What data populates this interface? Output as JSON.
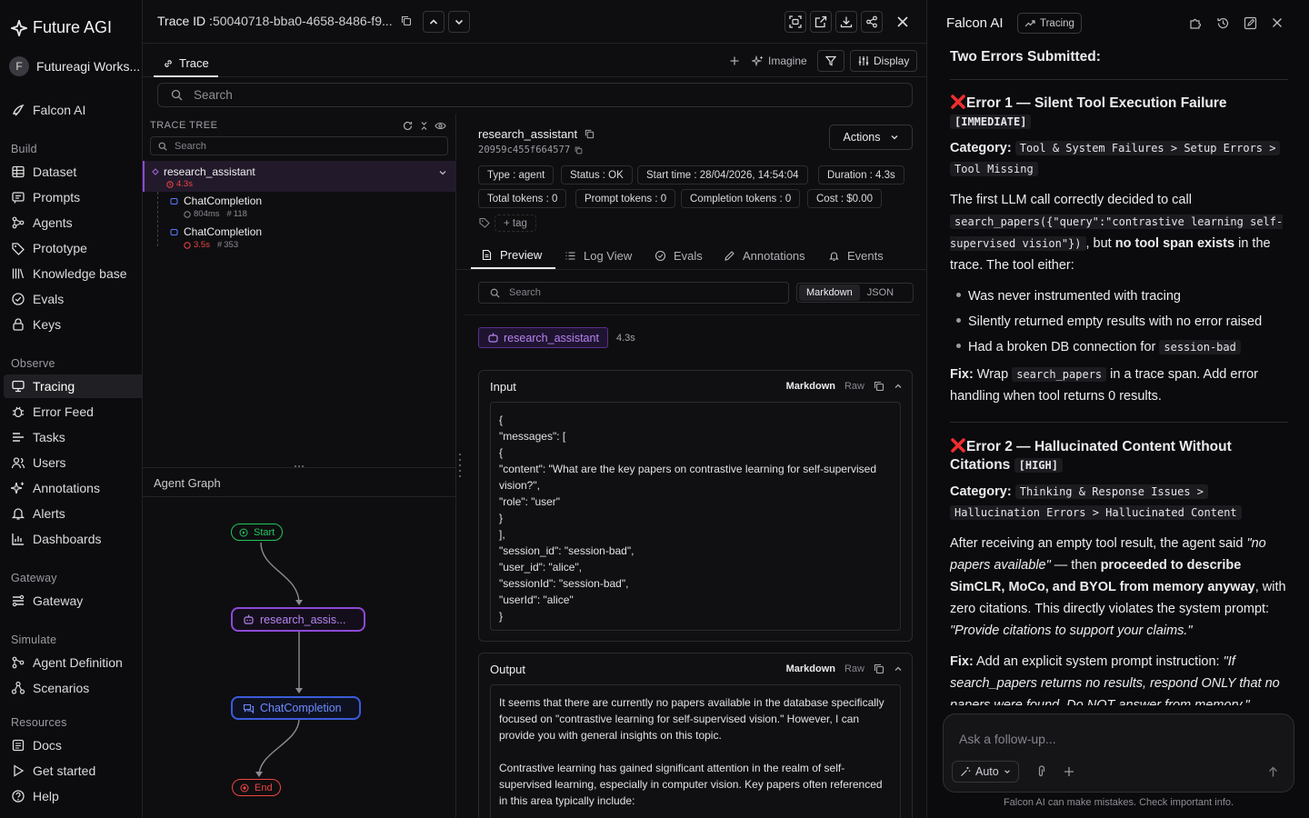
{
  "nav": {
    "brand": "Future AGI",
    "workspace": "Futureagi Works...",
    "workspace_initial": "F",
    "falcon": "Falcon AI",
    "sections": {
      "build": "Build",
      "observe": "Observe",
      "gateway": "Gateway",
      "simulate": "Simulate",
      "resources": "Resources"
    },
    "build_items": [
      "Dataset",
      "Prompts",
      "Agents",
      "Prototype",
      "Knowledge base",
      "Evals",
      "Keys"
    ],
    "observe_items": [
      "Tracing",
      "Error Feed",
      "Tasks",
      "Users",
      "Annotations",
      "Alerts",
      "Dashboards"
    ],
    "gateway_items": [
      "Gateway"
    ],
    "simulate_items": [
      "Agent Definition",
      "Scenarios"
    ],
    "resource_items": [
      "Docs",
      "Get started",
      "Help"
    ]
  },
  "trace": {
    "id_label": "Trace ID :",
    "id_value": "50040718-bba0-4658-8486-f9...",
    "tab": "Trace",
    "imagine": "Imagine",
    "display": "Display",
    "search_placeholder": "Search",
    "tree_title": "TRACE TREE",
    "tree_search": "Search",
    "tree": [
      {
        "name": "research_assistant",
        "duration": "4.3s"
      },
      {
        "name": "ChatCompletion",
        "duration": "804ms",
        "tokens": "118"
      },
      {
        "name": "ChatCompletion",
        "duration": "3.5s",
        "tokens": "353"
      }
    ],
    "graph_title": "Agent Graph",
    "graph_nodes": {
      "start": "Start",
      "agent": "research_assis...",
      "llm": "ChatCompletion",
      "end": "End"
    }
  },
  "details": {
    "name": "research_assistant",
    "span_id": "20959c455f664577",
    "actions": "Actions",
    "chips_row1": [
      "Type : agent",
      "Status : OK",
      "Start time : 28/04/2026, 14:54:04",
      "Duration : 4.3s"
    ],
    "chips_row2": [
      "Total tokens : 0",
      "Prompt tokens : 0",
      "Completion tokens : 0",
      "Cost : $0.00"
    ],
    "tag": "+ tag",
    "tabs": [
      "Preview",
      "Log View",
      "Evals",
      "Annotations",
      "Events"
    ],
    "search": "Search",
    "fmt_markdown": "Markdown",
    "fmt_json": "JSON",
    "agent_badge": "research_assistant",
    "agent_duration": "4.3s",
    "input_title": "Input",
    "output_title": "Output",
    "markdown": "Markdown",
    "raw": "Raw",
    "input_lines": [
      "{",
      "\"messages\": [",
      "{",
      "\"content\": \"What are the key papers on contrastive learning for self-supervised vision?\",",
      "\"role\": \"user\"",
      "}",
      "],",
      "\"session_id\": \"session-bad\",",
      "\"user_id\": \"alice\",",
      "\"sessionId\": \"session-bad\",",
      "\"userId\": \"alice\"",
      "}"
    ],
    "output_p1": "It seems that there are currently no papers available in the database specifically focused on \"contrastive learning for self-supervised vision.\" However, I can provide you with general insights on this topic.",
    "output_p2": "Contrastive learning has gained significant attention in the realm of self-supervised learning, especially in computer vision. Key papers often referenced in this area typically include:"
  },
  "falcon": {
    "title": "Falcon AI",
    "badge": "Tracing",
    "heading": "Two Errors Submitted:",
    "e1_title": "Error 1 — Silent Tool Execution Failure",
    "e1_tag": "[IMMEDIATE]",
    "category_label": "Category:",
    "e1_cat1": "Tool & System Failures > Setup Errors >",
    "e1_cat2": "Tool Missing",
    "e1_p_a": "The first LLM call correctly decided to call",
    "e1_code": "search_papers({\"query\":\"contrastive learning self-supervised vision\"})",
    "e1_p_b": ", but ",
    "e1_p_bold": "no tool span exists",
    "e1_p_c": " in the trace. The tool either:",
    "e1_list": [
      "Was never instrumented with tracing",
      "Silently returned empty results with no error raised",
      "Had a broken DB connection for"
    ],
    "e1_list_code": "session-bad",
    "fix_label": "Fix:",
    "e1_fix_a": " Wrap ",
    "e1_fix_code": "search_papers",
    "e1_fix_b": " in a trace span. Add error handling when tool returns 0 results.",
    "e2_title": "Error 2 — Hallucinated Content Without Citations",
    "e2_tag": "[HIGH]",
    "e2_cat1": "Thinking & Response Issues >",
    "e2_cat2": "Hallucination Errors > Hallucinated Content",
    "e2_p_a": "After receiving an empty tool result, the agent said ",
    "e2_p_quote": "\"no papers available\"",
    "e2_p_b": " — then ",
    "e2_p_bold": "proceeded to describe SimCLR, MoCo, and BYOL from memory anyway",
    "e2_p_c": ", with zero citations. This directly violates the system prompt: ",
    "e2_p_quote2": "\"Provide citations to support your claims.\"",
    "e2_fix_a": " Add an explicit system prompt instruction: ",
    "e2_fix_quote": "\"If search_papers returns no results, respond ONLY that no papers were found. Do NOT answer from memory.\"",
    "input_placeholder": "Ask a follow-up...",
    "mode": "Auto",
    "footer": "Falcon AI can make mistakes. Check important info."
  },
  "colors": {
    "accent": "#8e49d6",
    "error": "#ef4444",
    "success": "#22c55e",
    "link": "#5b7cff"
  }
}
